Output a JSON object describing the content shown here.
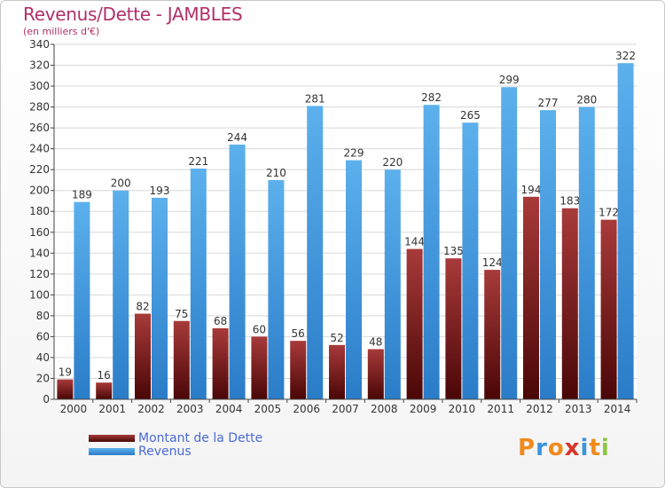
{
  "chart_data": {
    "type": "bar",
    "title": "Revenus/Dette - JAMBLES",
    "subtitle": "(en milliers d'€)",
    "categories": [
      "2000",
      "2001",
      "2002",
      "2003",
      "2004",
      "2005",
      "2006",
      "2007",
      "2008",
      "2009",
      "2010",
      "2011",
      "2012",
      "2013",
      "2014"
    ],
    "series": [
      {
        "name": "Montant de la Dette",
        "color": "#7a1a1a",
        "values": [
          19,
          16,
          82,
          75,
          68,
          60,
          56,
          52,
          48,
          144,
          135,
          124,
          194,
          183,
          172
        ]
      },
      {
        "name": "Revenus",
        "color": "#3a94dc",
        "values": [
          189,
          200,
          193,
          221,
          244,
          210,
          281,
          229,
          220,
          282,
          265,
          299,
          277,
          280,
          322
        ]
      }
    ],
    "ylim": [
      0,
      340
    ],
    "yticks": [
      0,
      20,
      40,
      60,
      80,
      100,
      120,
      140,
      160,
      180,
      200,
      220,
      240,
      260,
      280,
      300,
      320,
      340
    ],
    "grid": true,
    "legend_position": "bottom-left"
  },
  "logo": {
    "text": "Proxiti"
  }
}
